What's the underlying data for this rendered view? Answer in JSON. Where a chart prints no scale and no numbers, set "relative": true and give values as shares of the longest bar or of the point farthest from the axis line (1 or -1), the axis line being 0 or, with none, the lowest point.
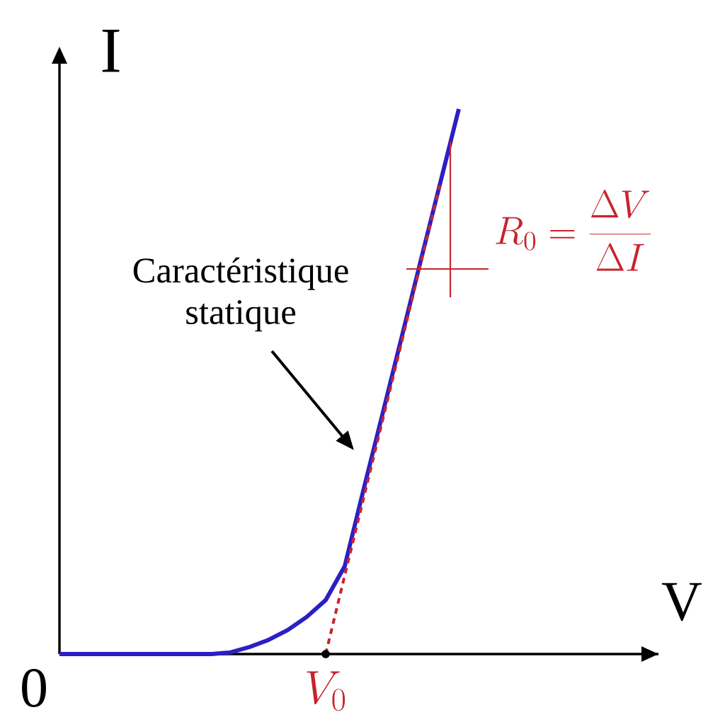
{
  "chart_data": {
    "type": "line",
    "relative": true,
    "xlabel": "V",
    "ylabel": "I",
    "categories": [
      null,
      null,
      null,
      null,
      null,
      null,
      null,
      null,
      null,
      null,
      null,
      null,
      null,
      null,
      null,
      null,
      null,
      null,
      null,
      null,
      null,
      null,
      null,
      null,
      null,
      null,
      null,
      null,
      null,
      null,
      null,
      null
    ],
    "series": [
      {
        "color": "#2b1fc4",
        "values": [
          0,
          0,
          0,
          0,
          0,
          0,
          0,
          0,
          0,
          0.003,
          0.013,
          0.026,
          0.044,
          0.068,
          0.099,
          0.161,
          0.303,
          0.442,
          0.582,
          0.722,
          0.861,
          1.0,
          null,
          null,
          null,
          null,
          null,
          null,
          null,
          null,
          null,
          null
        ]
      },
      {
        "color": "#c8242c",
        "line_style": "dashed",
        "values": [
          null,
          null,
          null,
          null,
          null,
          null,
          null,
          null,
          null,
          null,
          null,
          null,
          null,
          null,
          0,
          0.144,
          0.287,
          0.43,
          0.573,
          0.717,
          0.86,
          null,
          null,
          null,
          null,
          null,
          null,
          null,
          null,
          null,
          null,
          null
        ]
      }
    ],
    "annotations": [
      "0",
      "Caractéristique statique",
      "V_0",
      "R_0 = \\frac{\\Delta V}{\\Delta I}"
    ]
  }
}
